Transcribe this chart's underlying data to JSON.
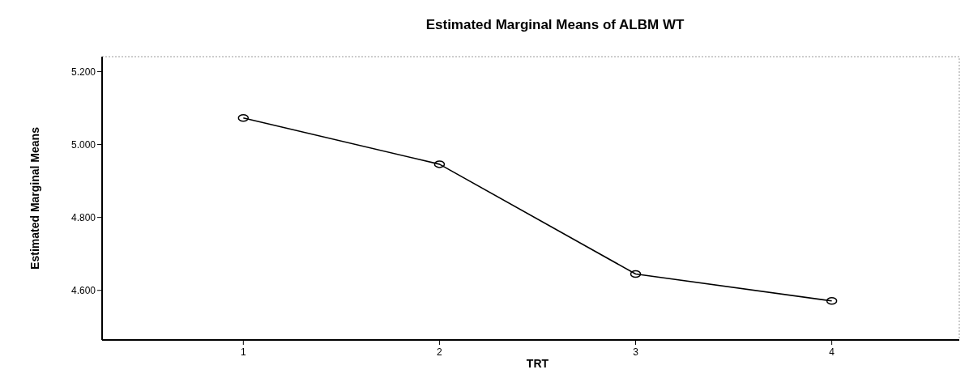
{
  "chart_data": {
    "type": "line",
    "title": "Estimated Marginal Means of ALBM WT",
    "xlabel": "TRT",
    "ylabel": "Estimated Marginal Means",
    "categories": [
      "1",
      "2",
      "3",
      "4"
    ],
    "series": [
      {
        "color": "#000000",
        "values": [
          5.073,
          4.946,
          4.645,
          4.571
        ]
      }
    ],
    "ylim": [
      4.464,
      5.241
    ],
    "yticks": [
      {
        "value": 5.2,
        "label": "5.200"
      },
      {
        "value": 5.0,
        "label": "5.000"
      },
      {
        "value": 4.8,
        "label": "4.800"
      },
      {
        "value": 4.6,
        "label": "4.600"
      }
    ],
    "marker": "circle",
    "line_style": "solid"
  }
}
